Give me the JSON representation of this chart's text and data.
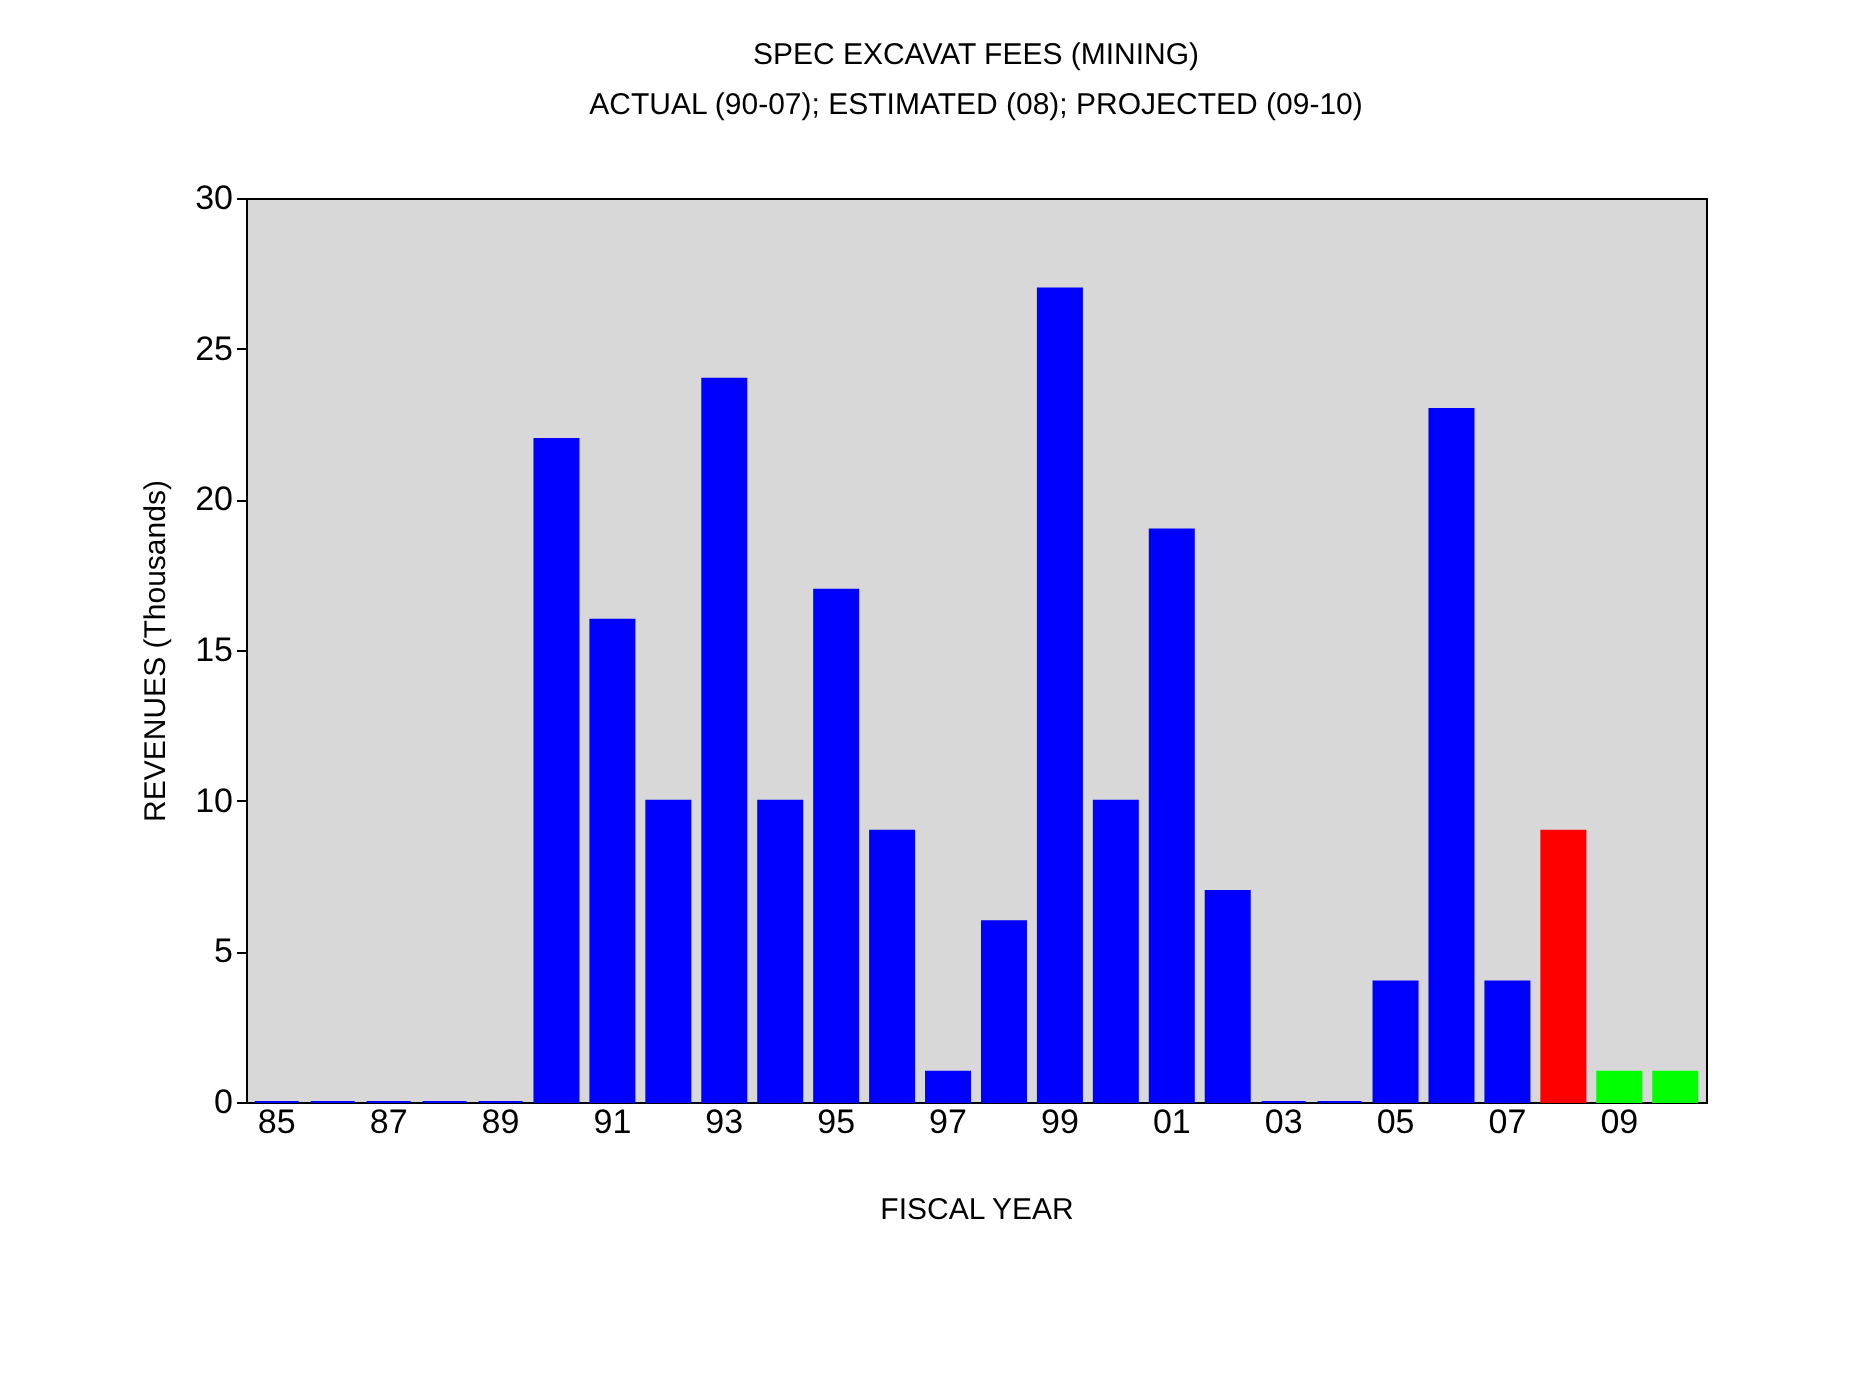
{
  "chart_data": {
    "type": "bar",
    "title": "SPEC EXCAVAT FEES (MINING)",
    "subtitle": "ACTUAL (90-07); ESTIMATED (08); PROJECTED (09-10)",
    "xlabel": "FISCAL YEAR",
    "ylabel": "REVENUES (Thousands)",
    "categories": [
      "85",
      null,
      "87",
      null,
      "89",
      null,
      "91",
      null,
      "93",
      null,
      "95",
      null,
      "97",
      null,
      "99",
      null,
      "01",
      null,
      "03",
      null,
      "05",
      null,
      "07",
      null,
      "09",
      null
    ],
    "values": [
      0,
      0,
      0,
      0,
      0,
      22,
      16,
      10,
      24,
      10,
      17,
      9,
      1,
      6,
      27,
      10,
      19,
      7,
      0,
      0,
      4,
      23,
      4,
      9,
      1,
      1
    ],
    "colors": [
      "#0000ff",
      "#0000ff",
      "#0000ff",
      "#0000ff",
      "#0000ff",
      "#0000ff",
      "#0000ff",
      "#0000ff",
      "#0000ff",
      "#0000ff",
      "#0000ff",
      "#0000ff",
      "#0000ff",
      "#0000ff",
      "#0000ff",
      "#0000ff",
      "#0000ff",
      "#0000ff",
      "#0000ff",
      "#0000ff",
      "#0000ff",
      "#0000ff",
      "#0000ff",
      "#ff0000",
      "#00ff00",
      "#00ff00"
    ],
    "ylim": [
      0,
      30
    ],
    "yticks": [
      0,
      5,
      10,
      15,
      20,
      25,
      30
    ],
    "grid": false
  }
}
